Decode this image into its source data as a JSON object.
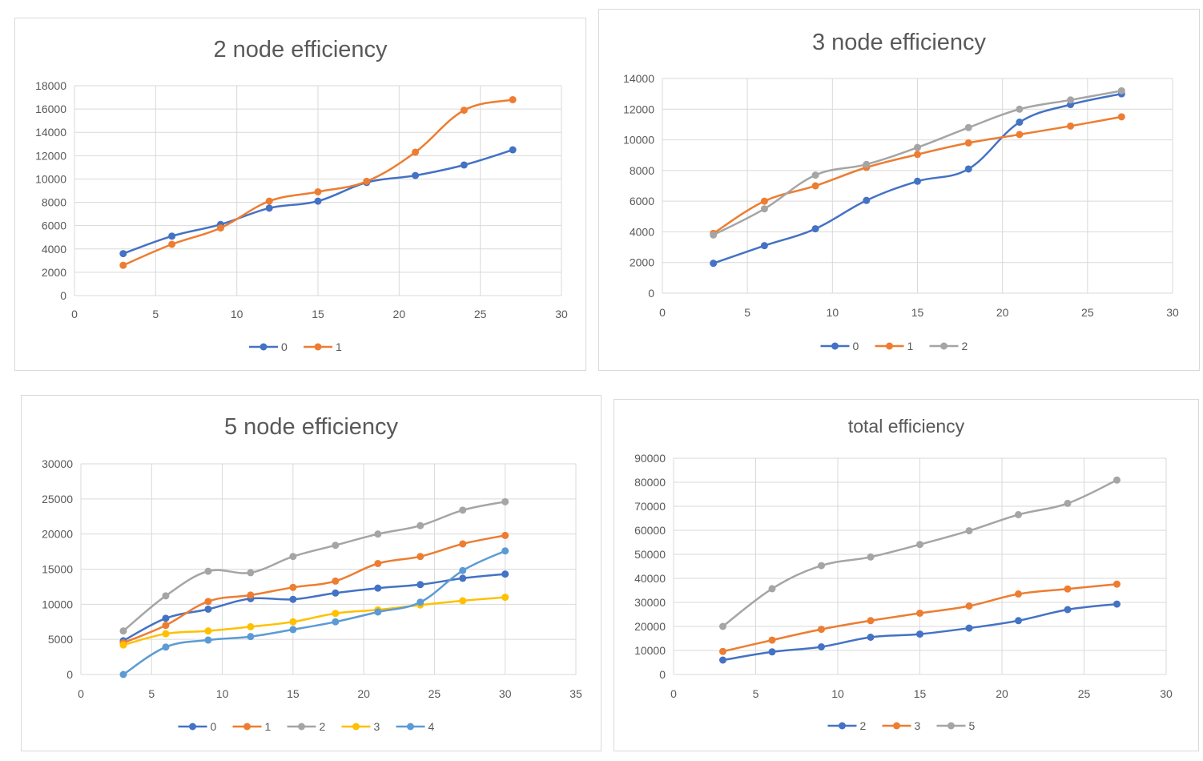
{
  "chart_data": [
    {
      "type": "line",
      "title": "2 node efficiency",
      "xlim": [
        0,
        30
      ],
      "xticks": [
        0,
        5,
        10,
        15,
        20,
        25,
        30
      ],
      "ylim": [
        0,
        18000
      ],
      "yticks": [
        0,
        2000,
        4000,
        6000,
        8000,
        10000,
        12000,
        14000,
        16000,
        18000
      ],
      "legend_position": "bottom",
      "series": [
        {
          "name": "0",
          "color": "#4472c4",
          "x": [
            3,
            6,
            9,
            12,
            15,
            18,
            21,
            24,
            27
          ],
          "y": [
            3600,
            5100,
            6100,
            7500,
            8100,
            9700,
            10300,
            11200,
            12500
          ]
        },
        {
          "name": "1",
          "color": "#ed7d31",
          "x": [
            3,
            6,
            9,
            12,
            15,
            18,
            21,
            24,
            27
          ],
          "y": [
            2600,
            4400,
            5800,
            8100,
            8900,
            9800,
            12300,
            15900,
            16800
          ]
        }
      ]
    },
    {
      "type": "line",
      "title": "3 node efficiency",
      "xlim": [
        0,
        30
      ],
      "xticks": [
        0,
        5,
        10,
        15,
        20,
        25,
        30
      ],
      "ylim": [
        0,
        14000
      ],
      "yticks": [
        0,
        2000,
        4000,
        6000,
        8000,
        10000,
        12000,
        14000
      ],
      "legend_position": "bottom",
      "series": [
        {
          "name": "0",
          "color": "#4472c4",
          "x": [
            3,
            6,
            9,
            12,
            15,
            18,
            21,
            24,
            27
          ],
          "y": [
            1950,
            3100,
            4200,
            6050,
            7300,
            8100,
            11150,
            12300,
            13000
          ]
        },
        {
          "name": "1",
          "color": "#ed7d31",
          "x": [
            3,
            6,
            9,
            12,
            15,
            18,
            21,
            24,
            27
          ],
          "y": [
            3900,
            6000,
            7000,
            8200,
            9050,
            9800,
            10350,
            10900,
            11500
          ]
        },
        {
          "name": "2",
          "color": "#a5a5a5",
          "x": [
            3,
            6,
            9,
            12,
            15,
            18,
            21,
            24,
            27
          ],
          "y": [
            3800,
            5500,
            7700,
            8400,
            9500,
            10800,
            12000,
            12600,
            13200
          ]
        }
      ]
    },
    {
      "type": "line",
      "title": "5 node efficiency",
      "xlim": [
        0,
        35
      ],
      "xticks": [
        0,
        5,
        10,
        15,
        20,
        25,
        30,
        35
      ],
      "ylim": [
        0,
        30000
      ],
      "yticks": [
        0,
        5000,
        10000,
        15000,
        20000,
        25000,
        30000
      ],
      "legend_position": "bottom",
      "series": [
        {
          "name": "0",
          "color": "#4472c4",
          "x": [
            3,
            6,
            9,
            12,
            15,
            18,
            21,
            24,
            27,
            30
          ],
          "y": [
            4800,
            8000,
            9300,
            10800,
            10700,
            11600,
            12300,
            12800,
            13700,
            14300
          ]
        },
        {
          "name": "1",
          "color": "#ed7d31",
          "x": [
            3,
            6,
            9,
            12,
            15,
            18,
            21,
            24,
            27,
            30
          ],
          "y": [
            4500,
            7000,
            10400,
            11300,
            12400,
            13300,
            15800,
            16800,
            18600,
            19800
          ]
        },
        {
          "name": "2",
          "color": "#a5a5a5",
          "x": [
            3,
            6,
            9,
            12,
            15,
            18,
            21,
            24,
            27,
            30
          ],
          "y": [
            6200,
            11200,
            14700,
            14500,
            16800,
            18400,
            20000,
            21200,
            23400,
            24600
          ]
        },
        {
          "name": "3",
          "color": "#ffc000",
          "x": [
            3,
            6,
            9,
            12,
            15,
            18,
            21,
            24,
            27,
            30
          ],
          "y": [
            4200,
            5800,
            6200,
            6800,
            7500,
            8700,
            9200,
            9900,
            10500,
            11000
          ]
        },
        {
          "name": "4",
          "color": "#5b9bd5",
          "x": [
            3,
            6,
            9,
            12,
            15,
            18,
            21,
            24,
            27,
            30
          ],
          "y": [
            0,
            3900,
            4900,
            5400,
            6400,
            7500,
            8900,
            10300,
            14800,
            17600
          ]
        }
      ]
    },
    {
      "type": "line",
      "title": "total efficiency",
      "xlim": [
        0,
        30
      ],
      "xticks": [
        0,
        5,
        10,
        15,
        20,
        25,
        30
      ],
      "ylim": [
        0,
        90000
      ],
      "yticks": [
        0,
        10000,
        20000,
        30000,
        40000,
        50000,
        60000,
        70000,
        80000,
        90000
      ],
      "legend_position": "bottom",
      "series": [
        {
          "name": "2",
          "color": "#4472c4",
          "x": [
            3,
            6,
            9,
            12,
            15,
            18,
            21,
            24,
            27
          ],
          "y": [
            6000,
            9400,
            11500,
            15500,
            16800,
            19300,
            22400,
            27000,
            29300
          ]
        },
        {
          "name": "3",
          "color": "#ed7d31",
          "x": [
            3,
            6,
            9,
            12,
            15,
            18,
            21,
            24,
            27
          ],
          "y": [
            9600,
            14300,
            18800,
            22400,
            25500,
            28500,
            33500,
            35600,
            37600
          ]
        },
        {
          "name": "5",
          "color": "#a5a5a5",
          "x": [
            3,
            6,
            9,
            12,
            15,
            18,
            21,
            24,
            27
          ],
          "y": [
            20000,
            35700,
            45300,
            48900,
            54100,
            59800,
            66500,
            71200,
            80900
          ]
        }
      ]
    }
  ]
}
